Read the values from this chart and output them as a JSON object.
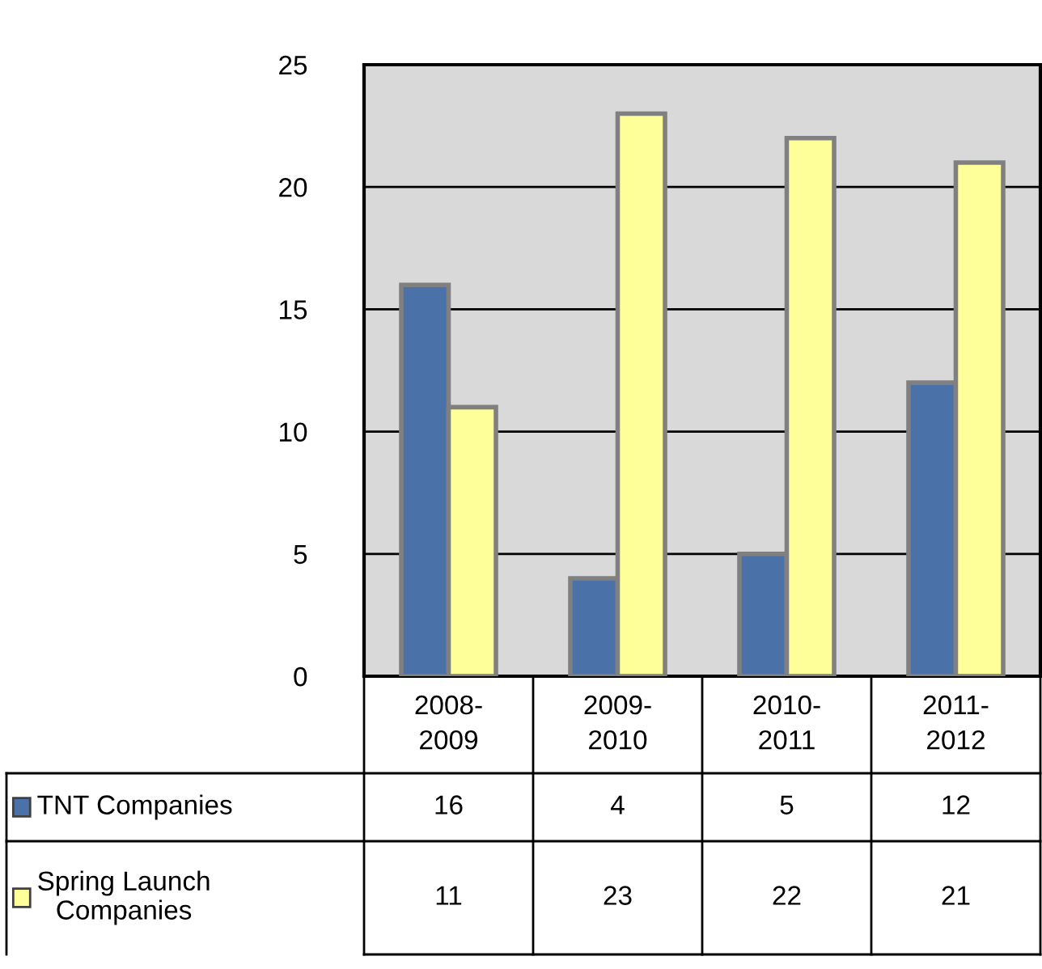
{
  "chart_data": {
    "type": "bar",
    "categories": [
      "2008-\n2009",
      "2009-\n2010",
      "2010-\n2011",
      "2011-\n2012"
    ],
    "series": [
      {
        "name": "TNT Companies",
        "color": "#4a71a8",
        "values": [
          16,
          4,
          5,
          12
        ]
      },
      {
        "name": "Spring Launch\nCompanies",
        "color": "#ffff99",
        "values": [
          11,
          23,
          22,
          21
        ]
      }
    ],
    "ylim": [
      0,
      25
    ],
    "yticks": [
      0,
      5,
      10,
      15,
      20,
      25
    ],
    "grid": "y",
    "legend": "bottom",
    "data_labels": true
  }
}
